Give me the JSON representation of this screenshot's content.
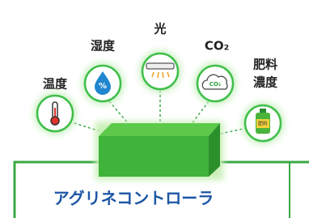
{
  "sensors": [
    {
      "label": "温度"
    },
    {
      "label": "湿度",
      "icon_text": "%"
    },
    {
      "label": "光"
    },
    {
      "label": "CO₂",
      "icon_text": "CO₂"
    },
    {
      "label_lines": [
        "肥料",
        "濃度"
      ],
      "icon_text": "肥料"
    }
  ],
  "controller": {
    "label": "アグリネコントローラ"
  }
}
